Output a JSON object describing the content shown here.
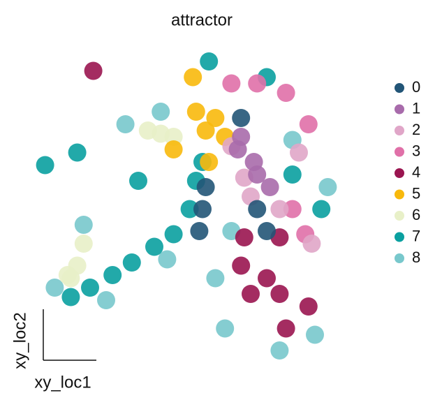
{
  "chart_data": {
    "type": "scatter",
    "title": "attractor",
    "x_label": "xy_loc1",
    "y_label": "xy_loc2",
    "xlim": [
      0,
      100
    ],
    "ylim": [
      0,
      100
    ],
    "series": [
      {
        "name": "0",
        "color": "#225577",
        "x": [
          50,
          51,
          49,
          62,
          70,
          67
        ],
        "y": [
          49,
          56,
          42,
          78,
          42,
          49
        ]
      },
      {
        "name": "1",
        "color": "#a86bab",
        "x": [
          62,
          66,
          71,
          67,
          61
        ],
        "y": [
          72,
          64,
          56,
          60,
          68
        ]
      },
      {
        "name": "2",
        "color": "#e0a6c8",
        "x": [
          59,
          63,
          65,
          74,
          84,
          80
        ],
        "y": [
          69,
          59,
          53,
          49,
          38,
          67
        ]
      },
      {
        "name": "3",
        "color": "#e070a8",
        "x": [
          59,
          67,
          76,
          83,
          78,
          82
        ],
        "y": [
          89,
          89,
          86,
          76,
          49,
          41
        ]
      },
      {
        "name": "4",
        "color": "#9a1550",
        "x": [
          63,
          74,
          62,
          65,
          76,
          83,
          70,
          16,
          74
        ],
        "y": [
          40,
          40,
          31,
          22,
          11,
          18,
          27,
          93,
          22
        ]
      },
      {
        "name": "5",
        "color": "#f8b90c",
        "x": [
          51,
          47,
          41,
          52,
          54,
          48,
          57
        ],
        "y": [
          74,
          91,
          68,
          64,
          78,
          80,
          72
        ]
      },
      {
        "name": "6",
        "color": "#e8f0c8",
        "x": [
          37,
          33,
          41,
          11,
          9,
          13,
          8
        ],
        "y": [
          73,
          74,
          72,
          31,
          27,
          38,
          28
        ]
      },
      {
        "name": "7",
        "color": "#0aa0a0",
        "x": [
          9,
          15,
          22,
          28,
          35,
          41,
          46,
          48,
          50,
          52,
          70,
          11,
          1,
          30,
          78,
          87
        ],
        "y": [
          21,
          24,
          28,
          32,
          37,
          41,
          49,
          58,
          64,
          96,
          91,
          67,
          63,
          58,
          60,
          49
        ]
      },
      {
        "name": "8",
        "color": "#78c8cc",
        "x": [
          4,
          20,
          39,
          26,
          57,
          74,
          85,
          59,
          54,
          78,
          89,
          13,
          37
        ],
        "y": [
          24,
          20,
          33,
          76,
          11,
          4,
          9,
          42,
          27,
          71,
          56,
          44,
          80
        ]
      }
    ]
  }
}
